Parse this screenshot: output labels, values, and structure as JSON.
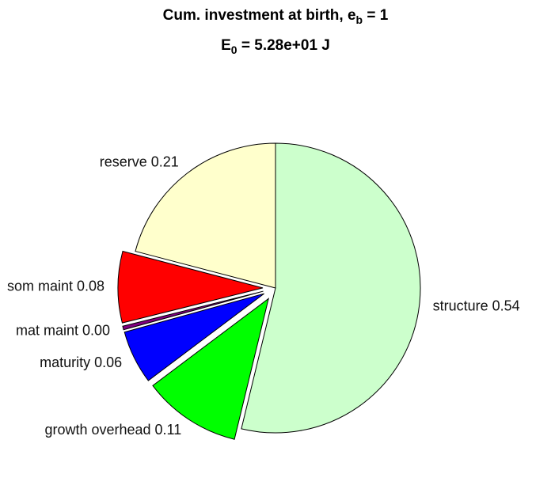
{
  "chart_data": {
    "type": "pie",
    "title": [
      "Cum. investment at birth, e",
      "b",
      " = 1"
    ],
    "subtitle": [
      "E",
      "0",
      " = 5.28e+01 J"
    ],
    "categories": [
      "structure 0.54",
      "growth overhead 0.11",
      "maturity 0.06",
      "mat maint 0.00",
      "som maint 0.08",
      "reserve 0.21"
    ],
    "values": [
      0.54,
      0.11,
      0.06,
      0.004,
      0.08,
      0.21
    ],
    "colors": [
      "#ccffcc",
      "#00ff00",
      "#0000ff",
      "#800080",
      "#ff0000",
      "#ffffcc"
    ],
    "explode": [
      false,
      true,
      true,
      true,
      true,
      false
    ]
  }
}
